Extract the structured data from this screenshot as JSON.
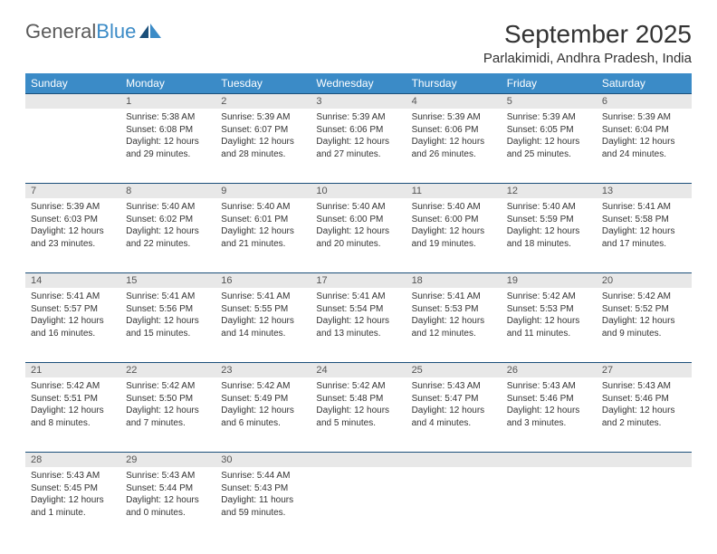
{
  "logo": {
    "text_gray": "General",
    "text_blue": "Blue"
  },
  "title": "September 2025",
  "location": "Parlakimidi, Andhra Pradesh, India",
  "colors": {
    "header_bg": "#3b8bc7",
    "header_text": "#ffffff",
    "row_divider": "#1b4f7a",
    "daynum_bg": "#e8e8e8",
    "daynum_text": "#555555",
    "body_text": "#333333",
    "logo_gray": "#5a5a5a",
    "logo_blue": "#3b8bc7",
    "page_bg": "#ffffff"
  },
  "typography": {
    "month_title_size": 28,
    "location_size": 15,
    "weekday_size": 12,
    "daynum_size": 11,
    "cell_text_size": 10,
    "logo_size": 22
  },
  "weekdays": [
    "Sunday",
    "Monday",
    "Tuesday",
    "Wednesday",
    "Thursday",
    "Friday",
    "Saturday"
  ],
  "weeks": [
    [
      {
        "empty": true
      },
      {
        "day": "1",
        "sunrise": "Sunrise: 5:38 AM",
        "sunset": "Sunset: 6:08 PM",
        "daylight": "Daylight: 12 hours and 29 minutes."
      },
      {
        "day": "2",
        "sunrise": "Sunrise: 5:39 AM",
        "sunset": "Sunset: 6:07 PM",
        "daylight": "Daylight: 12 hours and 28 minutes."
      },
      {
        "day": "3",
        "sunrise": "Sunrise: 5:39 AM",
        "sunset": "Sunset: 6:06 PM",
        "daylight": "Daylight: 12 hours and 27 minutes."
      },
      {
        "day": "4",
        "sunrise": "Sunrise: 5:39 AM",
        "sunset": "Sunset: 6:06 PM",
        "daylight": "Daylight: 12 hours and 26 minutes."
      },
      {
        "day": "5",
        "sunrise": "Sunrise: 5:39 AM",
        "sunset": "Sunset: 6:05 PM",
        "daylight": "Daylight: 12 hours and 25 minutes."
      },
      {
        "day": "6",
        "sunrise": "Sunrise: 5:39 AM",
        "sunset": "Sunset: 6:04 PM",
        "daylight": "Daylight: 12 hours and 24 minutes."
      }
    ],
    [
      {
        "day": "7",
        "sunrise": "Sunrise: 5:39 AM",
        "sunset": "Sunset: 6:03 PM",
        "daylight": "Daylight: 12 hours and 23 minutes."
      },
      {
        "day": "8",
        "sunrise": "Sunrise: 5:40 AM",
        "sunset": "Sunset: 6:02 PM",
        "daylight": "Daylight: 12 hours and 22 minutes."
      },
      {
        "day": "9",
        "sunrise": "Sunrise: 5:40 AM",
        "sunset": "Sunset: 6:01 PM",
        "daylight": "Daylight: 12 hours and 21 minutes."
      },
      {
        "day": "10",
        "sunrise": "Sunrise: 5:40 AM",
        "sunset": "Sunset: 6:00 PM",
        "daylight": "Daylight: 12 hours and 20 minutes."
      },
      {
        "day": "11",
        "sunrise": "Sunrise: 5:40 AM",
        "sunset": "Sunset: 6:00 PM",
        "daylight": "Daylight: 12 hours and 19 minutes."
      },
      {
        "day": "12",
        "sunrise": "Sunrise: 5:40 AM",
        "sunset": "Sunset: 5:59 PM",
        "daylight": "Daylight: 12 hours and 18 minutes."
      },
      {
        "day": "13",
        "sunrise": "Sunrise: 5:41 AM",
        "sunset": "Sunset: 5:58 PM",
        "daylight": "Daylight: 12 hours and 17 minutes."
      }
    ],
    [
      {
        "day": "14",
        "sunrise": "Sunrise: 5:41 AM",
        "sunset": "Sunset: 5:57 PM",
        "daylight": "Daylight: 12 hours and 16 minutes."
      },
      {
        "day": "15",
        "sunrise": "Sunrise: 5:41 AM",
        "sunset": "Sunset: 5:56 PM",
        "daylight": "Daylight: 12 hours and 15 minutes."
      },
      {
        "day": "16",
        "sunrise": "Sunrise: 5:41 AM",
        "sunset": "Sunset: 5:55 PM",
        "daylight": "Daylight: 12 hours and 14 minutes."
      },
      {
        "day": "17",
        "sunrise": "Sunrise: 5:41 AM",
        "sunset": "Sunset: 5:54 PM",
        "daylight": "Daylight: 12 hours and 13 minutes."
      },
      {
        "day": "18",
        "sunrise": "Sunrise: 5:41 AM",
        "sunset": "Sunset: 5:53 PM",
        "daylight": "Daylight: 12 hours and 12 minutes."
      },
      {
        "day": "19",
        "sunrise": "Sunrise: 5:42 AM",
        "sunset": "Sunset: 5:53 PM",
        "daylight": "Daylight: 12 hours and 11 minutes."
      },
      {
        "day": "20",
        "sunrise": "Sunrise: 5:42 AM",
        "sunset": "Sunset: 5:52 PM",
        "daylight": "Daylight: 12 hours and 9 minutes."
      }
    ],
    [
      {
        "day": "21",
        "sunrise": "Sunrise: 5:42 AM",
        "sunset": "Sunset: 5:51 PM",
        "daylight": "Daylight: 12 hours and 8 minutes."
      },
      {
        "day": "22",
        "sunrise": "Sunrise: 5:42 AM",
        "sunset": "Sunset: 5:50 PM",
        "daylight": "Daylight: 12 hours and 7 minutes."
      },
      {
        "day": "23",
        "sunrise": "Sunrise: 5:42 AM",
        "sunset": "Sunset: 5:49 PM",
        "daylight": "Daylight: 12 hours and 6 minutes."
      },
      {
        "day": "24",
        "sunrise": "Sunrise: 5:42 AM",
        "sunset": "Sunset: 5:48 PM",
        "daylight": "Daylight: 12 hours and 5 minutes."
      },
      {
        "day": "25",
        "sunrise": "Sunrise: 5:43 AM",
        "sunset": "Sunset: 5:47 PM",
        "daylight": "Daylight: 12 hours and 4 minutes."
      },
      {
        "day": "26",
        "sunrise": "Sunrise: 5:43 AM",
        "sunset": "Sunset: 5:46 PM",
        "daylight": "Daylight: 12 hours and 3 minutes."
      },
      {
        "day": "27",
        "sunrise": "Sunrise: 5:43 AM",
        "sunset": "Sunset: 5:46 PM",
        "daylight": "Daylight: 12 hours and 2 minutes."
      }
    ],
    [
      {
        "day": "28",
        "sunrise": "Sunrise: 5:43 AM",
        "sunset": "Sunset: 5:45 PM",
        "daylight": "Daylight: 12 hours and 1 minute."
      },
      {
        "day": "29",
        "sunrise": "Sunrise: 5:43 AM",
        "sunset": "Sunset: 5:44 PM",
        "daylight": "Daylight: 12 hours and 0 minutes."
      },
      {
        "day": "30",
        "sunrise": "Sunrise: 5:44 AM",
        "sunset": "Sunset: 5:43 PM",
        "daylight": "Daylight: 11 hours and 59 minutes."
      },
      {
        "empty": true
      },
      {
        "empty": true
      },
      {
        "empty": true
      },
      {
        "empty": true
      }
    ]
  ]
}
